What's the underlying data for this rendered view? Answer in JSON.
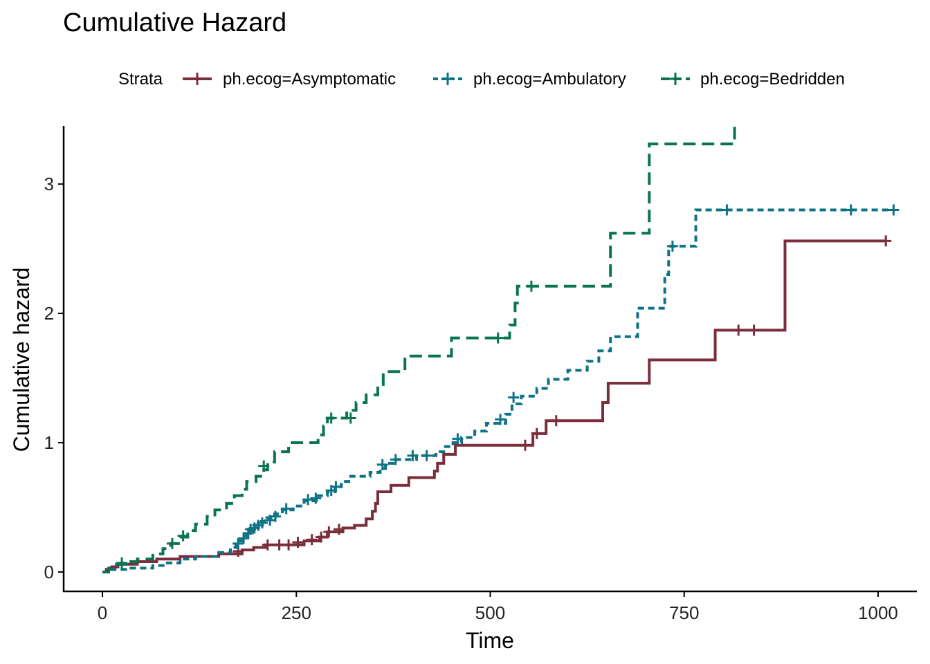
{
  "chart_data": {
    "type": "line",
    "title": "Cumulative Hazard",
    "xlabel": "Time",
    "ylabel": "Cumulative hazard",
    "xlim": [
      -50,
      1050
    ],
    "ylim": [
      -0.15,
      3.45
    ],
    "xticks": [
      0,
      250,
      500,
      750,
      1000
    ],
    "yticks": [
      0,
      1,
      2,
      3
    ],
    "xtick_labels": [
      "0",
      "250",
      "500",
      "750",
      "1000"
    ],
    "ytick_labels": [
      "0",
      "1",
      "2",
      "3"
    ],
    "grid": false,
    "legend": {
      "title": "Strata",
      "position": "top"
    },
    "series": [
      {
        "name": "ph.ecog=Asymptomatic",
        "color": "#7A2E3C",
        "dash": "solid",
        "steps": [
          [
            0,
            0
          ],
          [
            5,
            0.02
          ],
          [
            12,
            0.04
          ],
          [
            20,
            0.06
          ],
          [
            45,
            0.08
          ],
          [
            70,
            0.1
          ],
          [
            100,
            0.12
          ],
          [
            150,
            0.14
          ],
          [
            180,
            0.17
          ],
          [
            195,
            0.19
          ],
          [
            210,
            0.21
          ],
          [
            260,
            0.24
          ],
          [
            280,
            0.27
          ],
          [
            290,
            0.31
          ],
          [
            310,
            0.34
          ],
          [
            325,
            0.36
          ],
          [
            340,
            0.41
          ],
          [
            348,
            0.47
          ],
          [
            352,
            0.53
          ],
          [
            355,
            0.62
          ],
          [
            372,
            0.67
          ],
          [
            395,
            0.73
          ],
          [
            428,
            0.78
          ],
          [
            432,
            0.84
          ],
          [
            440,
            0.91
          ],
          [
            455,
            0.98
          ],
          [
            555,
            1.07
          ],
          [
            572,
            1.17
          ],
          [
            645,
            1.31
          ],
          [
            652,
            1.46
          ],
          [
            705,
            1.64
          ],
          [
            790,
            1.87
          ],
          [
            880,
            2.56
          ],
          [
            1010,
            2.56
          ]
        ],
        "censor": [
          [
            175,
            0.16
          ],
          [
            213,
            0.21
          ],
          [
            228,
            0.21
          ],
          [
            240,
            0.21
          ],
          [
            252,
            0.23
          ],
          [
            270,
            0.25
          ],
          [
            282,
            0.27
          ],
          [
            292,
            0.31
          ],
          [
            305,
            0.33
          ],
          [
            545,
            0.98
          ],
          [
            560,
            1.07
          ],
          [
            585,
            1.17
          ],
          [
            820,
            1.87
          ],
          [
            840,
            1.87
          ],
          [
            1010,
            2.56
          ]
        ]
      },
      {
        "name": "ph.ecog=Ambulatory",
        "color": "#0E7285",
        "dash": "dotted",
        "steps": [
          [
            0,
            0
          ],
          [
            10,
            0.02
          ],
          [
            30,
            0.03
          ],
          [
            65,
            0.05
          ],
          [
            80,
            0.07
          ],
          [
            100,
            0.1
          ],
          [
            120,
            0.12
          ],
          [
            150,
            0.15
          ],
          [
            165,
            0.19
          ],
          [
            172,
            0.24
          ],
          [
            180,
            0.28
          ],
          [
            186,
            0.32
          ],
          [
            195,
            0.36
          ],
          [
            205,
            0.39
          ],
          [
            212,
            0.42
          ],
          [
            222,
            0.45
          ],
          [
            232,
            0.48
          ],
          [
            246,
            0.51
          ],
          [
            260,
            0.55
          ],
          [
            278,
            0.59
          ],
          [
            290,
            0.62
          ],
          [
            300,
            0.66
          ],
          [
            308,
            0.7
          ],
          [
            320,
            0.74
          ],
          [
            345,
            0.77
          ],
          [
            358,
            0.8
          ],
          [
            365,
            0.84
          ],
          [
            378,
            0.87
          ],
          [
            405,
            0.9
          ],
          [
            430,
            0.93
          ],
          [
            440,
            0.97
          ],
          [
            452,
            1.0
          ],
          [
            463,
            1.04
          ],
          [
            480,
            1.09
          ],
          [
            495,
            1.15
          ],
          [
            520,
            1.22
          ],
          [
            528,
            1.3
          ],
          [
            540,
            1.36
          ],
          [
            560,
            1.42
          ],
          [
            575,
            1.49
          ],
          [
            600,
            1.56
          ],
          [
            625,
            1.63
          ],
          [
            640,
            1.71
          ],
          [
            655,
            1.82
          ],
          [
            690,
            2.04
          ],
          [
            715,
            2.04
          ],
          [
            725,
            2.3
          ],
          [
            730,
            2.52
          ],
          [
            765,
            2.8
          ],
          [
            1020,
            2.8
          ]
        ],
        "censor": [
          [
            175,
            0.22
          ],
          [
            182,
            0.26
          ],
          [
            188,
            0.3
          ],
          [
            191,
            0.33
          ],
          [
            196,
            0.34
          ],
          [
            201,
            0.36
          ],
          [
            206,
            0.38
          ],
          [
            216,
            0.4
          ],
          [
            223,
            0.43
          ],
          [
            237,
            0.49
          ],
          [
            265,
            0.56
          ],
          [
            275,
            0.57
          ],
          [
            295,
            0.63
          ],
          [
            301,
            0.66
          ],
          [
            361,
            0.83
          ],
          [
            378,
            0.87
          ],
          [
            400,
            0.9
          ],
          [
            418,
            0.9
          ],
          [
            458,
            1.03
          ],
          [
            513,
            1.18
          ],
          [
            530,
            1.35
          ],
          [
            735,
            2.52
          ],
          [
            805,
            2.8
          ],
          [
            965,
            2.8
          ],
          [
            1020,
            2.8
          ]
        ]
      },
      {
        "name": "ph.ecog=Bedridden",
        "color": "#0A7452",
        "dash": "dashed",
        "steps": [
          [
            0,
            0
          ],
          [
            8,
            0.03
          ],
          [
            18,
            0.06
          ],
          [
            30,
            0.08
          ],
          [
            45,
            0.1
          ],
          [
            65,
            0.14
          ],
          [
            78,
            0.18
          ],
          [
            88,
            0.22
          ],
          [
            100,
            0.27
          ],
          [
            110,
            0.32
          ],
          [
            120,
            0.37
          ],
          [
            135,
            0.43
          ],
          [
            145,
            0.48
          ],
          [
            160,
            0.53
          ],
          [
            170,
            0.59
          ],
          [
            180,
            0.64
          ],
          [
            186,
            0.7
          ],
          [
            198,
            0.74
          ],
          [
            208,
            0.79
          ],
          [
            213,
            0.85
          ],
          [
            222,
            0.93
          ],
          [
            240,
            1.0
          ],
          [
            278,
            1.06
          ],
          [
            285,
            1.13
          ],
          [
            290,
            1.19
          ],
          [
            315,
            1.25
          ],
          [
            327,
            1.31
          ],
          [
            340,
            1.37
          ],
          [
            355,
            1.45
          ],
          [
            362,
            1.55
          ],
          [
            390,
            1.67
          ],
          [
            450,
            1.81
          ],
          [
            525,
            1.91
          ],
          [
            532,
            2.08
          ],
          [
            535,
            2.21
          ],
          [
            655,
            2.62
          ],
          [
            705,
            3.31
          ],
          [
            815,
            3.45
          ]
        ],
        "censor": [
          [
            25,
            0.07
          ],
          [
            90,
            0.22
          ],
          [
            104,
            0.28
          ],
          [
            208,
            0.82
          ],
          [
            295,
            1.19
          ],
          [
            320,
            1.19
          ],
          [
            510,
            1.81
          ],
          [
            553,
            2.21
          ]
        ]
      }
    ]
  }
}
